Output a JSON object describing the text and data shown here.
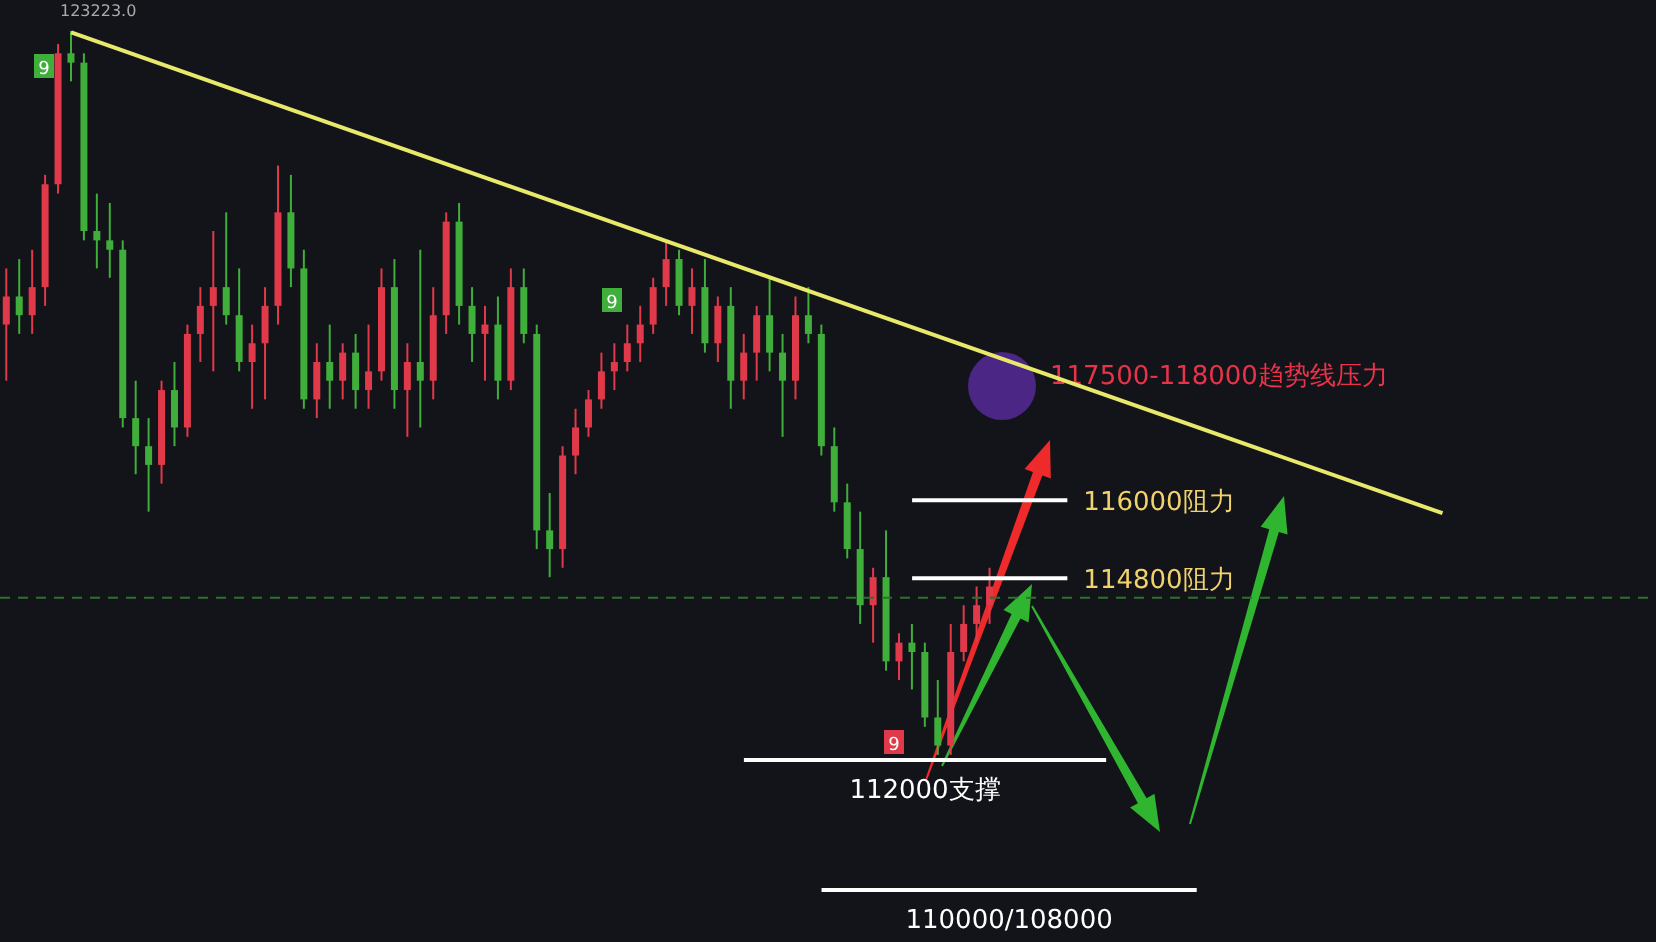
{
  "chart_data": {
    "type": "candlestick",
    "categories": [
      null,
      null,
      null,
      null,
      null,
      null,
      null,
      null,
      null,
      null,
      null,
      null,
      null,
      null,
      null,
      null,
      null,
      null,
      null,
      null,
      null,
      null,
      null,
      null,
      null,
      null,
      null,
      null,
      null,
      null,
      null,
      null,
      null,
      null,
      null,
      null,
      null,
      null,
      null,
      null,
      null,
      null,
      null,
      null,
      null,
      null,
      null,
      null,
      null,
      null,
      null,
      null,
      null,
      null,
      null,
      null,
      null,
      null,
      null,
      null,
      null,
      null,
      null,
      null,
      null,
      null,
      null,
      null,
      null,
      null,
      null,
      null,
      null,
      null,
      null,
      null,
      null,
      null,
      null,
      null,
      null,
      null,
      null,
      null,
      null,
      null,
      null,
      null,
      null,
      null,
      null,
      null,
      null,
      null,
      null,
      null,
      null,
      null,
      null,
      null,
      null,
      null,
      null,
      null,
      null,
      null,
      null,
      null,
      null,
      null,
      null,
      null,
      null,
      null,
      null,
      null,
      null,
      null,
      null,
      null,
      null,
      null,
      null,
      null,
      null,
      null,
      null,
      null
    ],
    "ohlc": [
      [
        118704,
        119568,
        117840,
        119136
      ],
      [
        119136,
        119712,
        118560,
        118848
      ],
      [
        118848,
        119856,
        118560,
        119280
      ],
      [
        119280,
        121008,
        118992,
        120864
      ],
      [
        120864,
        123024,
        120720,
        122880
      ],
      [
        122880,
        123223,
        122448,
        122736
      ],
      [
        122736,
        122880,
        120000,
        120144
      ],
      [
        120144,
        120720,
        119568,
        120000
      ],
      [
        120000,
        120576,
        119424,
        119856
      ],
      [
        119856,
        120000,
        117120,
        117264
      ],
      [
        117264,
        117840,
        116400,
        116832
      ],
      [
        116832,
        117264,
        115824,
        116544
      ],
      [
        116544,
        117840,
        116256,
        117696
      ],
      [
        117696,
        118128,
        116832,
        117120
      ],
      [
        117120,
        118704,
        116976,
        118560
      ],
      [
        118560,
        119280,
        118128,
        118992
      ],
      [
        118992,
        120144,
        117984,
        119280
      ],
      [
        119280,
        120432,
        118704,
        118848
      ],
      [
        118848,
        119568,
        117984,
        118128
      ],
      [
        118128,
        118704,
        117408,
        118416
      ],
      [
        118416,
        119280,
        117552,
        118992
      ],
      [
        118992,
        121152,
        118704,
        120432
      ],
      [
        120432,
        121008,
        119280,
        119568
      ],
      [
        119568,
        119856,
        117408,
        117552
      ],
      [
        117552,
        118416,
        117264,
        118128
      ],
      [
        118128,
        118704,
        117408,
        117840
      ],
      [
        117840,
        118416,
        117552,
        118272
      ],
      [
        118272,
        118560,
        117408,
        117696
      ],
      [
        117696,
        118704,
        117408,
        117984
      ],
      [
        117984,
        119568,
        117840,
        119280
      ],
      [
        119280,
        119712,
        117408,
        117696
      ],
      [
        117696,
        118416,
        116976,
        118128
      ],
      [
        118128,
        119856,
        117120,
        117840
      ],
      [
        117840,
        119280,
        117552,
        118848
      ],
      [
        118848,
        120432,
        118560,
        120288
      ],
      [
        120288,
        120576,
        118704,
        118992
      ],
      [
        118992,
        119280,
        118128,
        118560
      ],
      [
        118560,
        118992,
        117840,
        118704
      ],
      [
        118704,
        119136,
        117552,
        117840
      ],
      [
        117840,
        119568,
        117696,
        119280
      ],
      [
        119280,
        119568,
        118416,
        118560
      ],
      [
        118560,
        118704,
        115248,
        115536
      ],
      [
        115536,
        116112,
        114816,
        115248
      ],
      [
        115248,
        116832,
        114960,
        116688
      ],
      [
        116688,
        117408,
        116400,
        117120
      ],
      [
        117120,
        117696,
        116976,
        117552
      ],
      [
        117552,
        118272,
        117408,
        117984
      ],
      [
        117984,
        118416,
        117696,
        118128
      ],
      [
        118128,
        118704,
        117984,
        118416
      ],
      [
        118416,
        118992,
        118128,
        118704
      ],
      [
        118704,
        119424,
        118560,
        119280
      ],
      [
        119280,
        120000,
        118992,
        119712
      ],
      [
        119712,
        119856,
        118848,
        118992
      ],
      [
        118992,
        119568,
        118560,
        119280
      ],
      [
        119280,
        119712,
        118272,
        118416
      ],
      [
        118416,
        119136,
        118128,
        118992
      ],
      [
        118992,
        119280,
        117408,
        117840
      ],
      [
        117840,
        118560,
        117552,
        118272
      ],
      [
        118272,
        118992,
        117840,
        118848
      ],
      [
        118848,
        119424,
        117984,
        118272
      ],
      [
        118272,
        118560,
        116976,
        117840
      ],
      [
        117840,
        119136,
        117552,
        118848
      ],
      [
        118848,
        119280,
        118416,
        118560
      ],
      [
        118560,
        118704,
        116688,
        116832
      ],
      [
        116832,
        117120,
        115824,
        115968
      ],
      [
        115968,
        116256,
        115104,
        115248
      ],
      [
        115248,
        115824,
        114096,
        114384
      ],
      [
        114384,
        114960,
        113808,
        114816
      ],
      [
        114816,
        115536,
        113376,
        113520
      ],
      [
        113520,
        113952,
        113232,
        113808
      ],
      [
        113808,
        114096,
        113088,
        113664
      ],
      [
        113664,
        113808,
        112512,
        112656
      ],
      [
        112656,
        113232,
        112080,
        112224
      ],
      [
        112224,
        114096,
        112080,
        113664
      ],
      [
        113664,
        114384,
        113520,
        114096
      ],
      [
        114096,
        114672,
        113808,
        114384
      ],
      [
        114384,
        114960,
        114096,
        114672
      ],
      null,
      null,
      null,
      null,
      null,
      null,
      null,
      null,
      null,
      null,
      null,
      null,
      null,
      null,
      null,
      null,
      null,
      null,
      null,
      null,
      null,
      null,
      null,
      null,
      null,
      null,
      null,
      null,
      null,
      null,
      null,
      null,
      null,
      null,
      null,
      null,
      null,
      null,
      null,
      null,
      null,
      null,
      null,
      null,
      null,
      null,
      null,
      null,
      null,
      null,
      null
    ],
    "series": [
      {
        "type": "line",
        "color": "#e8e86a",
        "values": [
          null,
          null,
          null,
          null,
          null,
          123200,
          null,
          null,
          null,
          null,
          null,
          null,
          null,
          null,
          null,
          null,
          null,
          null,
          null,
          null,
          null,
          null,
          null,
          null,
          null,
          null,
          null,
          null,
          null,
          null,
          null,
          null,
          null,
          null,
          null,
          null,
          null,
          null,
          null,
          null,
          null,
          null,
          null,
          null,
          null,
          null,
          null,
          null,
          null,
          null,
          null,
          null,
          null,
          null,
          null,
          null,
          null,
          null,
          null,
          null,
          null,
          null,
          null,
          null,
          null,
          null,
          null,
          null,
          null,
          null,
          null,
          null,
          null,
          null,
          null,
          null,
          null,
          null,
          null,
          null,
          null,
          null,
          null,
          null,
          null,
          null,
          null,
          null,
          null,
          null,
          null,
          null,
          null,
          null,
          null,
          null,
          null,
          null,
          null,
          null,
          null,
          null,
          null,
          null,
          null,
          null,
          null,
          null,
          null,
          null,
          null,
          115800,
          null,
          null,
          null,
          null,
          null,
          null,
          null,
          null,
          null,
          null,
          null,
          null,
          null,
          null,
          null,
          null
        ]
      }
    ],
    "ylim": [
      109200,
      123700
    ],
    "tick_labels": false,
    "ref_lines": [
      {
        "axis": "y",
        "value": 116000,
        "label": "116000阻力",
        "color": "#ffffff"
      },
      {
        "axis": "y",
        "value": 114800,
        "label": "114800阻力",
        "color": "#ffffff"
      },
      {
        "axis": "y",
        "value": 112000,
        "label": "112000支撑",
        "color": "#ffffff"
      },
      {
        "axis": "y",
        "value": 110000,
        "label": "110000/108000",
        "color": "#ffffff"
      },
      {
        "axis": "y",
        "value": 114500,
        "color": "#2f6f2f",
        "line_style": "dashed"
      }
    ],
    "annotations": [
      "123223.0",
      "117500-118000趋势线压力",
      "9",
      "9",
      "9"
    ]
  }
}
